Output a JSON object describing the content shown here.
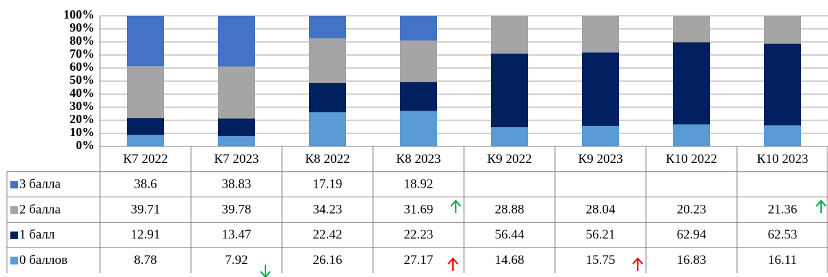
{
  "chart_data": {
    "type": "stacked_bar_100",
    "categories": [
      "К7 2022",
      "К7 2023",
      "К8 2022",
      "К8 2023",
      "К9 2022",
      "К9 2023",
      "К10 2022",
      "К10 2023"
    ],
    "series": [
      {
        "name": "0 баллов",
        "color": "#5b9bd5",
        "values": [
          8.78,
          7.92,
          26.16,
          27.17,
          14.68,
          15.75,
          16.83,
          16.11
        ]
      },
      {
        "name": "1 балл",
        "color": "#002060",
        "values": [
          12.91,
          13.47,
          22.42,
          22.23,
          56.44,
          56.21,
          62.94,
          62.53
        ]
      },
      {
        "name": "2 балла",
        "color": "#a5a5a5",
        "values": [
          39.71,
          39.78,
          34.23,
          31.69,
          28.88,
          28.04,
          20.23,
          21.36
        ]
      },
      {
        "name": "3 балла",
        "color": "#4472c4",
        "values": [
          38.6,
          38.83,
          17.19,
          18.92,
          null,
          null,
          null,
          null
        ]
      }
    ],
    "ylim": [
      0,
      100
    ],
    "yticks": [
      {
        "value": 0,
        "label": "0%"
      },
      {
        "value": 10,
        "label": "10%"
      },
      {
        "value": 20,
        "label": "20%"
      },
      {
        "value": 30,
        "label": "30%"
      },
      {
        "value": 40,
        "label": "40%"
      },
      {
        "value": 50,
        "label": "50%"
      },
      {
        "value": 60,
        "label": "60%"
      },
      {
        "value": 70,
        "label": "70%"
      },
      {
        "value": 80,
        "label": "80%"
      },
      {
        "value": 90,
        "label": "90%"
      },
      {
        "value": 100,
        "label": "100%"
      }
    ],
    "grid": true
  }
}
